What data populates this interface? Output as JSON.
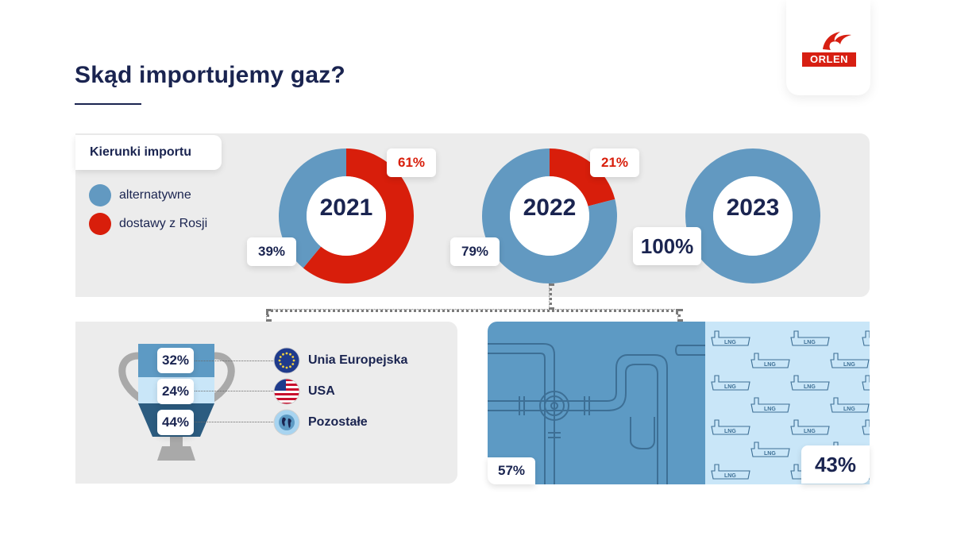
{
  "header": {
    "title": "Skąd importujemy gaz?",
    "logo_text": "ORLEN"
  },
  "legend": {
    "title": "Kierunki importu",
    "items": [
      {
        "label": "alternatywne",
        "color": "#6299c1"
      },
      {
        "label": "dostawy z Rosji",
        "color": "#d81e0b"
      }
    ]
  },
  "colors": {
    "navy": "#1a2450",
    "band": "#ececec",
    "pipe_panel": "#5d9ac4",
    "lng_panel": "#c9e6f8",
    "trophy_grey": "#a9a9a9",
    "trophy_top": "#5d9ac4",
    "trophy_mid": "#c9e6f8",
    "trophy_bottom": "#2c5c80"
  },
  "chart_data": [
    {
      "type": "pie",
      "title": "2021",
      "series": [
        {
          "name": "alternatywne",
          "value": 39,
          "label": "39%"
        },
        {
          "name": "dostawy z Rosji",
          "value": 61,
          "label": "61%"
        }
      ]
    },
    {
      "type": "pie",
      "title": "2022",
      "series": [
        {
          "name": "alternatywne",
          "value": 79,
          "label": "79%"
        },
        {
          "name": "dostawy z Rosji",
          "value": 21,
          "label": "21%"
        }
      ]
    },
    {
      "type": "pie",
      "title": "2023",
      "series": [
        {
          "name": "alternatywne",
          "value": 100,
          "label": "100%"
        },
        {
          "name": "dostawy z Rosji",
          "value": 0,
          "label": ""
        }
      ]
    },
    {
      "type": "bar",
      "categories": [
        "Unia Europejska",
        "USA",
        "Pozostałe"
      ],
      "values": [
        32,
        24,
        44
      ],
      "labels": [
        "32%",
        "24%",
        "44%"
      ]
    },
    {
      "type": "bar",
      "categories": [
        "pipe",
        "LNG"
      ],
      "values": [
        57,
        43
      ],
      "labels": [
        "57%",
        "43%"
      ],
      "icons": [
        "pipeline-icon",
        "lng-tanker-icon"
      ]
    }
  ],
  "lng_tag": "LNG",
  "countries": [
    {
      "label": "Unia Europejska",
      "icon": "eu-flag-icon"
    },
    {
      "label": "USA",
      "icon": "us-flag-icon"
    },
    {
      "label": "Pozostałe",
      "icon": "globe-icon"
    }
  ]
}
